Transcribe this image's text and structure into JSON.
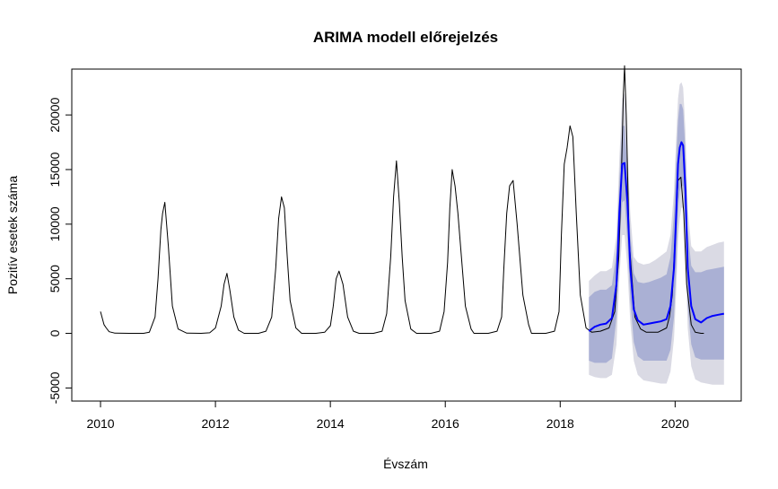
{
  "chart_data": {
    "type": "line",
    "title": "ARIMA modell előrejelzés",
    "xlabel": "Évszám",
    "ylabel": "Pozitív esetek száma",
    "xlim": [
      2009.5,
      2021.15
    ],
    "ylim": [
      -6200,
      24200
    ],
    "x_ticks": [
      2010,
      2012,
      2014,
      2016,
      2018,
      2020
    ],
    "x_tick_labels": [
      "2010",
      "2012",
      "2014",
      "2016",
      "2018",
      "2020"
    ],
    "y_ticks": [
      -5000,
      0,
      5000,
      10000,
      15000,
      20000
    ],
    "y_tick_labels": [
      "-5000",
      "0",
      "5000",
      "10000",
      "15000",
      "20000"
    ],
    "grid": false,
    "colors": {
      "observed": "#000000",
      "forecast": "#0000ff",
      "band95": "#dadae4",
      "band80": "#aab0d4"
    },
    "series": [
      {
        "key": "observed",
        "x": [
          2010.0,
          2010.06,
          2010.1,
          2010.15,
          2010.25,
          2010.5,
          2010.75,
          2010.85,
          2010.95,
          2011.0,
          2011.05,
          2011.08,
          2011.12,
          2011.18,
          2011.25,
          2011.35,
          2011.5,
          2011.75,
          2011.9,
          2012.0,
          2012.1,
          2012.15,
          2012.2,
          2012.25,
          2012.32,
          2012.4,
          2012.5,
          2012.75,
          2012.88,
          2012.98,
          2013.05,
          2013.1,
          2013.15,
          2013.2,
          2013.25,
          2013.3,
          2013.4,
          2013.5,
          2013.75,
          2013.9,
          2014.0,
          2014.05,
          2014.1,
          2014.15,
          2014.22,
          2014.3,
          2014.4,
          2014.5,
          2014.75,
          2014.9,
          2014.98,
          2015.05,
          2015.1,
          2015.15,
          2015.2,
          2015.25,
          2015.3,
          2015.4,
          2015.5,
          2015.75,
          2015.9,
          2015.98,
          2016.04,
          2016.08,
          2016.12,
          2016.17,
          2016.22,
          2016.28,
          2016.35,
          2016.45,
          2016.5,
          2016.75,
          2016.9,
          2016.98,
          2017.02,
          2017.07,
          2017.12,
          2017.18,
          2017.25,
          2017.35,
          2017.45,
          2017.5,
          2017.75,
          2017.9,
          2017.98,
          2018.02,
          2018.07,
          2018.12,
          2018.17,
          2018.22,
          2018.28,
          2018.35,
          2018.45,
          2018.55,
          2018.7,
          2018.85,
          2018.95,
          2019.02,
          2019.07,
          2019.1,
          2019.12,
          2019.15,
          2019.2,
          2019.3,
          2019.4,
          2019.5,
          2019.7,
          2019.85,
          2019.9,
          2019.95,
          2020.0,
          2020.05,
          2020.1,
          2020.15,
          2020.2,
          2020.28,
          2020.35,
          2020.45,
          2020.5
        ],
        "y": [
          2000,
          800,
          500,
          150,
          20,
          0,
          0,
          100,
          1500,
          5000,
          9500,
          11000,
          12000,
          8000,
          2500,
          400,
          20,
          0,
          50,
          500,
          2500,
          4500,
          5500,
          4000,
          1500,
          300,
          0,
          0,
          200,
          1500,
          6000,
          10500,
          12500,
          11500,
          7000,
          3000,
          500,
          0,
          0,
          100,
          700,
          2500,
          5000,
          5700,
          4500,
          1500,
          200,
          0,
          0,
          200,
          1800,
          7000,
          12500,
          15800,
          12000,
          7000,
          3000,
          400,
          0,
          0,
          200,
          2000,
          6500,
          11500,
          15000,
          13500,
          11000,
          7000,
          2500,
          400,
          0,
          0,
          200,
          1500,
          6000,
          11000,
          13500,
          14000,
          10000,
          3500,
          800,
          0,
          0,
          200,
          2000,
          9000,
          15500,
          17000,
          19000,
          18000,
          11000,
          3500,
          500,
          100,
          200,
          500,
          2000,
          7000,
          15500,
          22000,
          24500,
          20000,
          8500,
          1500,
          400,
          100,
          100,
          500,
          1500,
          3500,
          9000,
          14000,
          14300,
          11000,
          4500,
          800,
          100,
          0,
          0
        ]
      },
      {
        "key": "forecast",
        "x": [
          2018.5,
          2018.6,
          2018.7,
          2018.8,
          2018.9,
          2018.98,
          2019.03,
          2019.08,
          2019.12,
          2019.17,
          2019.22,
          2019.28,
          2019.35,
          2019.45,
          2019.55,
          2019.65,
          2019.75,
          2019.85,
          2019.92,
          2019.98,
          2020.02,
          2020.05,
          2020.08,
          2020.11,
          2020.14,
          2020.18,
          2020.22,
          2020.28,
          2020.35,
          2020.45,
          2020.55,
          2020.65,
          2020.75,
          2020.85
        ],
        "y": [
          200,
          600,
          800,
          900,
          1400,
          4500,
          11000,
          15500,
          15600,
          12000,
          6000,
          2200,
          1200,
          800,
          900,
          1000,
          1100,
          1300,
          2500,
          6000,
          11000,
          15500,
          17000,
          17500,
          17200,
          13000,
          6000,
          2500,
          1300,
          1000,
          1400,
          1600,
          1700,
          1800
        ]
      }
    ],
    "bands": [
      {
        "key": "band95",
        "x": [
          2018.5,
          2018.6,
          2018.7,
          2018.8,
          2018.9,
          2018.98,
          2019.03,
          2019.08,
          2019.12,
          2019.17,
          2019.22,
          2019.28,
          2019.35,
          2019.45,
          2019.55,
          2019.65,
          2019.75,
          2019.85,
          2019.92,
          2019.98,
          2020.02,
          2020.05,
          2020.08,
          2020.11,
          2020.14,
          2020.18,
          2020.22,
          2020.28,
          2020.35,
          2020.45,
          2020.55,
          2020.65,
          2020.75,
          2020.85
        ],
        "upper": [
          4800,
          5300,
          5700,
          5700,
          6000,
          9000,
          16000,
          21500,
          22000,
          17000,
          11000,
          7000,
          6500,
          6300,
          6400,
          6700,
          7100,
          7500,
          9000,
          13000,
          18000,
          21500,
          22800,
          23000,
          22500,
          18500,
          11500,
          8000,
          7500,
          7500,
          7900,
          8100,
          8300,
          8400
        ],
        "lower": [
          -3800,
          -4000,
          -4100,
          -4100,
          -3800,
          -1000,
          5000,
          9000,
          9000,
          6000,
          1000,
          -2500,
          -3800,
          -4300,
          -4400,
          -4500,
          -4600,
          -4600,
          -3500,
          -500,
          4000,
          8500,
          10500,
          11500,
          11500,
          7000,
          500,
          -3000,
          -4200,
          -4500,
          -4600,
          -4700,
          -4700,
          -4700
        ]
      },
      {
        "key": "band80",
        "x": [
          2018.5,
          2018.6,
          2018.7,
          2018.8,
          2018.9,
          2018.98,
          2019.03,
          2019.08,
          2019.12,
          2019.17,
          2019.22,
          2019.28,
          2019.35,
          2019.45,
          2019.55,
          2019.65,
          2019.75,
          2019.85,
          2019.92,
          2019.98,
          2020.02,
          2020.05,
          2020.08,
          2020.11,
          2020.14,
          2020.18,
          2020.22,
          2020.28,
          2020.35,
          2020.45,
          2020.55,
          2020.65,
          2020.75,
          2020.85
        ],
        "upper": [
          3300,
          3800,
          4000,
          4000,
          4400,
          7500,
          14000,
          19000,
          19000,
          15000,
          9000,
          5500,
          4700,
          4600,
          4700,
          4900,
          5100,
          5400,
          7000,
          11000,
          16000,
          19500,
          21000,
          21000,
          20500,
          16500,
          9500,
          6200,
          5600,
          5600,
          5800,
          5900,
          6000,
          6100
        ],
        "lower": [
          -2500,
          -2700,
          -2700,
          -2700,
          -2300,
          1500,
          8000,
          12000,
          12200,
          8500,
          3000,
          -800,
          -2100,
          -2500,
          -2500,
          -2500,
          -2500,
          -2500,
          -1500,
          1500,
          6000,
          11000,
          13000,
          13500,
          13500,
          9500,
          2500,
          -1000,
          -2200,
          -2400,
          -2400,
          -2400,
          -2400,
          -2400
        ]
      }
    ]
  }
}
